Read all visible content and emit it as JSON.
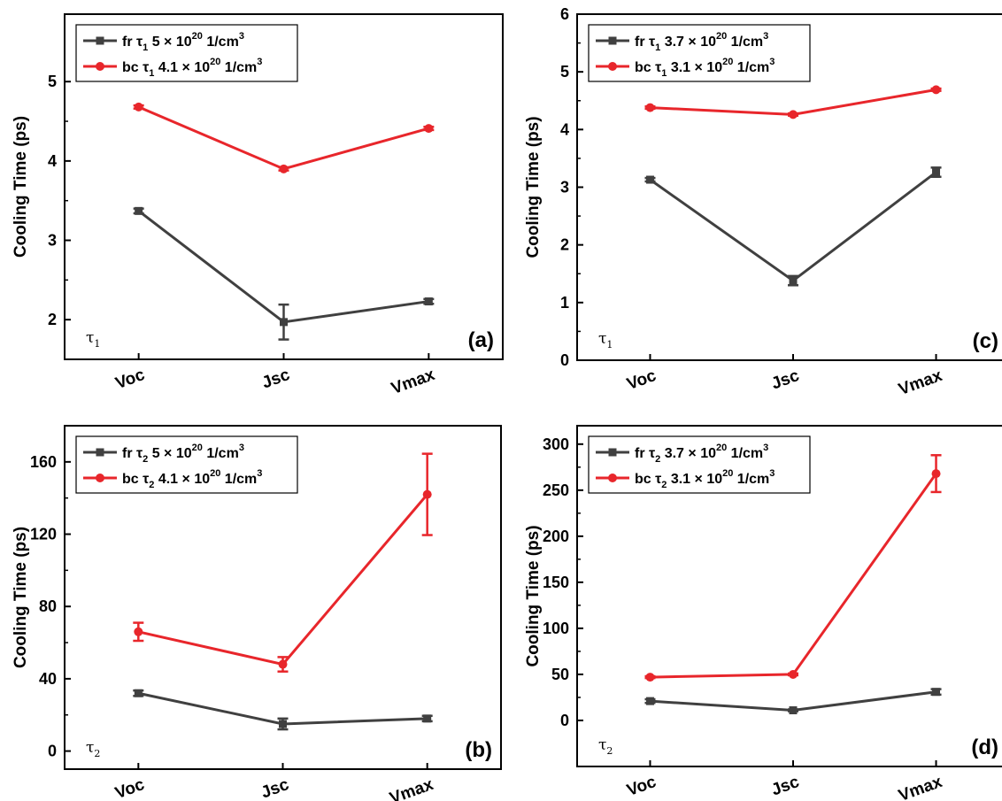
{
  "figure": {
    "colors": {
      "fr": "#404040",
      "bc": "#e8262b",
      "axis": "#000000"
    },
    "chart_data": [
      {
        "id": "a",
        "type": "line",
        "panel_label": "(a)",
        "tau": "τ",
        "tau_sub": "1",
        "ylabel": "Cooling Time (ps)",
        "categories": [
          "Voc",
          "Jsc",
          "Vmax"
        ],
        "ylim": [
          1.5,
          5.85
        ],
        "yticks": [
          2,
          3,
          4,
          5
        ],
        "ytick_labels": [
          "2",
          "3",
          "4",
          "5"
        ],
        "legend_position": "top-left",
        "series": [
          {
            "key": "fr",
            "name_pre": "fr τ",
            "sub": "1",
            "name_mid": " 5 × 10",
            "sup": "20",
            "name_post": " 1/cm",
            "sup2": "3",
            "values": [
              3.37,
              1.97,
              2.23
            ],
            "errors": [
              0.03,
              0.22,
              0.03
            ],
            "marker": "square"
          },
          {
            "key": "bc",
            "name_pre": "bc τ",
            "sub": "1",
            "name_mid": " 4.1 × 10",
            "sup": "20",
            "name_post": " 1/cm",
            "sup2": "3",
            "values": [
              4.68,
              3.9,
              4.41
            ],
            "errors": [
              0.02,
              0.02,
              0.02
            ],
            "marker": "circle"
          }
        ]
      },
      {
        "id": "c",
        "type": "line",
        "panel_label": "(c)",
        "tau": "τ",
        "tau_sub": "1",
        "ylabel": "Cooling Time (ps)",
        "categories": [
          "Voc",
          "Jsc",
          "Vmax"
        ],
        "ylim": [
          0,
          6
        ],
        "yticks": [
          0,
          1,
          2,
          3,
          4,
          5,
          6
        ],
        "ytick_labels": [
          "0",
          "1",
          "2",
          "3",
          "4",
          "5",
          "6"
        ],
        "legend_position": "top-left",
        "series": [
          {
            "key": "fr",
            "name_pre": "fr τ",
            "sub": "1",
            "name_mid": " 3.7 × 10",
            "sup": "20",
            "name_post": " 1/cm",
            "sup2": "3",
            "values": [
              3.13,
              1.38,
              3.26
            ],
            "errors": [
              0.03,
              0.08,
              0.08
            ],
            "marker": "square"
          },
          {
            "key": "bc",
            "name_pre": "bc τ",
            "sub": "1",
            "name_mid": " 3.1 × 10",
            "sup": "20",
            "name_post": " 1/cm",
            "sup2": "3",
            "values": [
              4.38,
              4.26,
              4.69
            ],
            "errors": [
              0.02,
              0.02,
              0.02
            ],
            "marker": "circle"
          }
        ]
      },
      {
        "id": "b",
        "type": "line",
        "panel_label": "(b)",
        "tau": "τ",
        "tau_sub": "2",
        "ylabel": "Cooling Time (ps)",
        "categories": [
          "Voc",
          "Jsc",
          "Vmax"
        ],
        "ylim": [
          -10,
          180
        ],
        "yticks": [
          0,
          40,
          80,
          120,
          160
        ],
        "ytick_labels": [
          "0",
          "40",
          "80",
          "120",
          "160"
        ],
        "legend_position": "top-left",
        "series": [
          {
            "key": "fr",
            "name_pre": "fr τ",
            "sub": "2",
            "name_mid": " 5 × 10",
            "sup": "20",
            "name_post": " 1/cm",
            "sup2": "3",
            "values": [
              32,
              15,
              18
            ],
            "errors": [
              1.5,
              3,
              1.5
            ],
            "marker": "square"
          },
          {
            "key": "bc",
            "name_pre": "bc τ",
            "sub": "2",
            "name_mid": " 4.1 × 10",
            "sup": "20",
            "name_post": " 1/cm",
            "sup2": "3",
            "values": [
              66,
              48,
              142
            ],
            "errors": [
              5,
              4,
              22.5
            ],
            "marker": "circle"
          }
        ]
      },
      {
        "id": "d",
        "type": "line",
        "panel_label": "(d)",
        "tau": "τ",
        "tau_sub": "2",
        "ylabel": "Cooling Time (ps)",
        "categories": [
          "Voc",
          "Jsc",
          "Vmax"
        ],
        "ylim": [
          -50,
          320
        ],
        "yticks": [
          0,
          50,
          100,
          150,
          200,
          250,
          300
        ],
        "ytick_labels": [
          "0",
          "50",
          "100",
          "150",
          "200",
          "250",
          "300"
        ],
        "legend_position": "top-left",
        "series": [
          {
            "key": "fr",
            "name_pre": "fr τ",
            "sub": "2",
            "name_mid": " 3.7 × 10",
            "sup": "20",
            "name_post": " 1/cm",
            "sup2": "3",
            "values": [
              21,
              11,
              31
            ],
            "errors": [
              2,
              1,
              3
            ],
            "marker": "square"
          },
          {
            "key": "bc",
            "name_pre": "bc τ",
            "sub": "2",
            "name_mid": " 3.1 × 10",
            "sup": "20",
            "name_post": " 1/cm",
            "sup2": "3",
            "values": [
              47,
              50,
              268
            ],
            "errors": [
              1,
              1,
              20
            ],
            "marker": "circle"
          }
        ]
      }
    ]
  }
}
